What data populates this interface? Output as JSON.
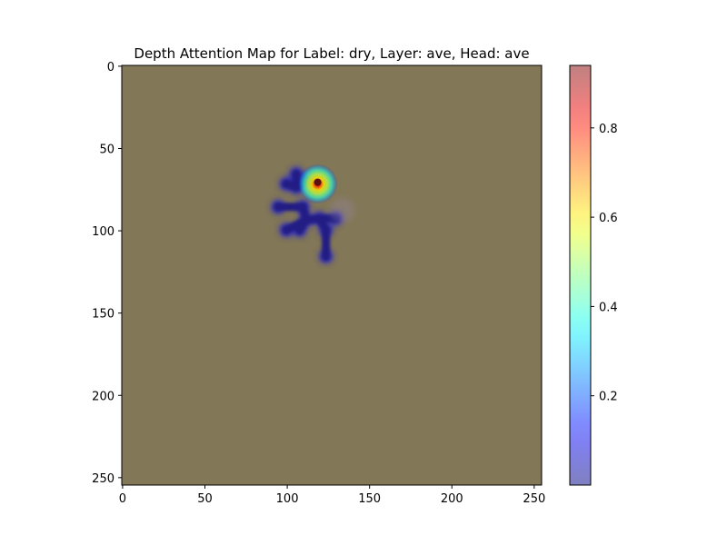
{
  "chart_data": {
    "type": "heatmap",
    "title": "Depth Attention Map for Label: dry, Layer: ave, Head: ave",
    "xlabel": "",
    "ylabel": "",
    "x_range": [
      0,
      255
    ],
    "y_range": [
      0,
      255
    ],
    "y_inverted": true,
    "x_ticks": [
      "0",
      "50",
      "100",
      "150",
      "200",
      "250"
    ],
    "y_ticks": [
      "0",
      "50",
      "100",
      "150",
      "200",
      "250"
    ],
    "x_tick_values": [
      0,
      50,
      100,
      150,
      200,
      250
    ],
    "y_tick_values": [
      0,
      50,
      100,
      150,
      200,
      250
    ],
    "colormap": "jet (alpha 0.5)",
    "background_color": "#827756",
    "grid": false,
    "colorbar": {
      "range": [
        0.0,
        0.94
      ],
      "ticks": [
        "0.2",
        "0.4",
        "0.6",
        "0.8"
      ],
      "tick_values": [
        0.2,
        0.4,
        0.6,
        0.8
      ]
    },
    "hotspots": [
      {
        "x": 119,
        "y": 71,
        "value": 0.94,
        "note": "peak"
      },
      {
        "x": 119,
        "y": 72,
        "value": 0.62
      },
      {
        "x": 110,
        "y": 80,
        "value": 0.15
      },
      {
        "x": 100,
        "y": 86,
        "value": 0.1
      },
      {
        "x": 108,
        "y": 95,
        "value": 0.1
      },
      {
        "x": 124,
        "y": 92,
        "value": 0.1
      },
      {
        "x": 124,
        "y": 108,
        "value": 0.1
      }
    ],
    "attention_path": [
      {
        "x": 106,
        "y": 66,
        "value": 0.05
      },
      {
        "x": 106,
        "y": 74,
        "value": 0.05
      },
      {
        "x": 100,
        "y": 72,
        "value": 0.05
      },
      {
        "x": 112,
        "y": 70,
        "value": 0.05
      },
      {
        "x": 95,
        "y": 86,
        "value": 0.05
      },
      {
        "x": 110,
        "y": 86,
        "value": 0.05
      },
      {
        "x": 112,
        "y": 94,
        "value": 0.05
      },
      {
        "x": 100,
        "y": 100,
        "value": 0.05
      },
      {
        "x": 108,
        "y": 100,
        "value": 0.05
      },
      {
        "x": 120,
        "y": 93,
        "value": 0.05
      },
      {
        "x": 130,
        "y": 93,
        "value": 0.05
      },
      {
        "x": 124,
        "y": 100,
        "value": 0.05
      },
      {
        "x": 124,
        "y": 116,
        "value": 0.05
      }
    ]
  }
}
